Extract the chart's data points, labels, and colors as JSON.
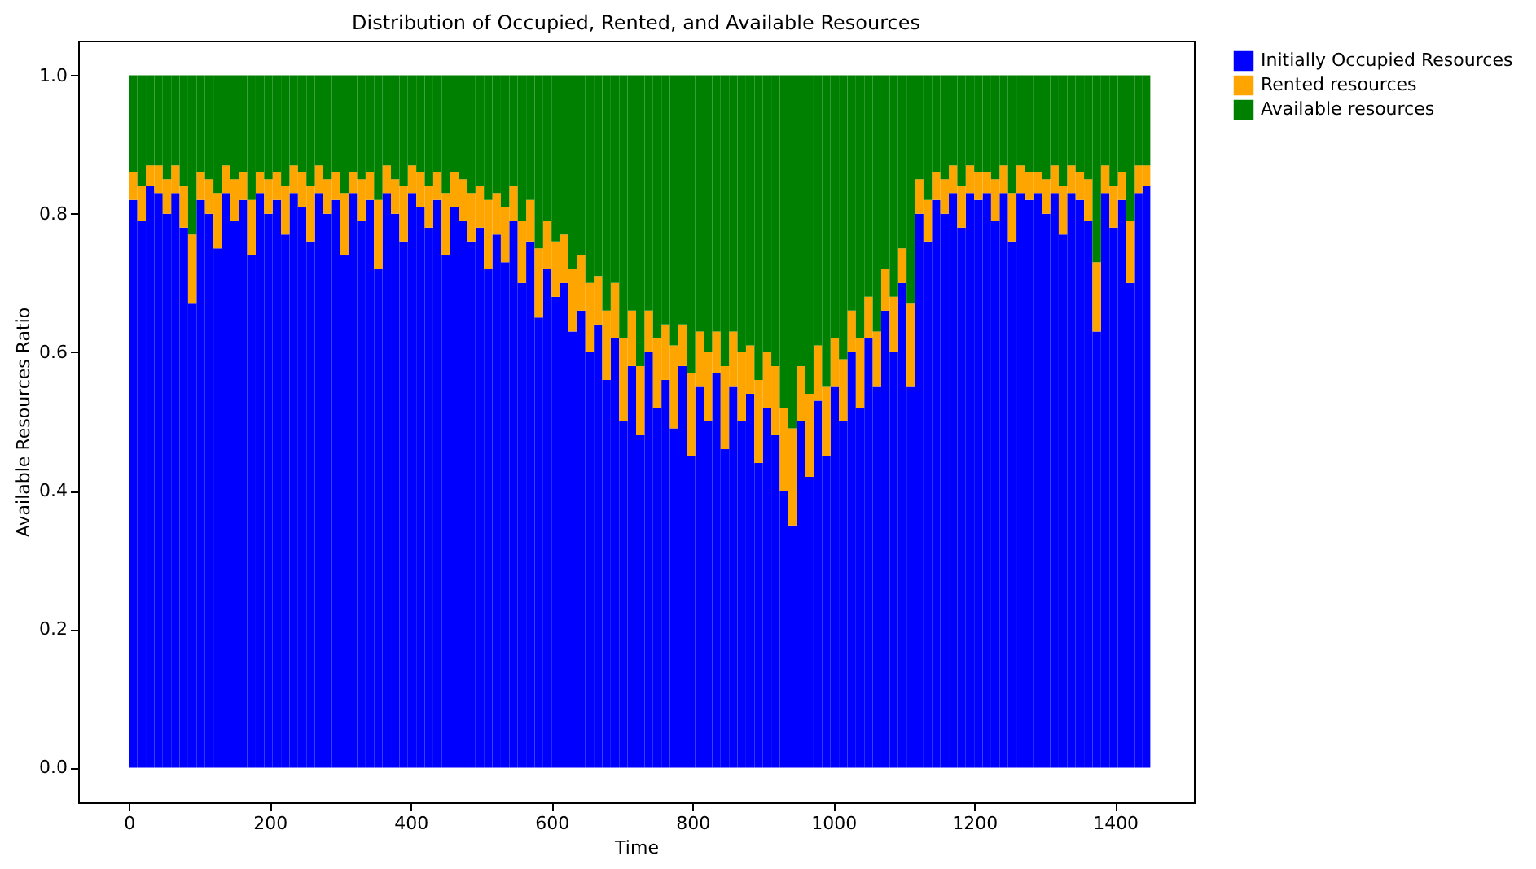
{
  "chart_data": {
    "type": "bar",
    "stacked": true,
    "title": "Distribution of Occupied, Rented, and Available Resources",
    "xlabel": "Time",
    "ylabel": "Available Resources Ratio",
    "x": [
      0,
      12,
      24,
      36,
      48,
      60,
      72,
      84,
      96,
      108,
      120,
      132,
      144,
      156,
      168,
      180,
      192,
      204,
      216,
      228,
      240,
      252,
      264,
      276,
      288,
      300,
      312,
      324,
      336,
      348,
      360,
      372,
      384,
      396,
      408,
      420,
      432,
      444,
      456,
      468,
      480,
      492,
      504,
      516,
      528,
      540,
      552,
      564,
      576,
      588,
      600,
      612,
      624,
      636,
      648,
      660,
      672,
      684,
      696,
      708,
      720,
      732,
      744,
      756,
      768,
      780,
      792,
      804,
      816,
      828,
      840,
      852,
      864,
      876,
      888,
      900,
      912,
      924,
      936,
      948,
      960,
      972,
      984,
      996,
      1008,
      1020,
      1032,
      1044,
      1056,
      1068,
      1080,
      1092,
      1104,
      1116,
      1128,
      1140,
      1152,
      1164,
      1176,
      1188,
      1200,
      1212,
      1224,
      1236,
      1248,
      1260,
      1272,
      1284,
      1296,
      1308,
      1320,
      1332,
      1344,
      1356,
      1368,
      1380,
      1392,
      1404,
      1416,
      1428,
      1439
    ],
    "series": [
      {
        "name": "Initially Occupied Resources",
        "color": "#0000ff",
        "values": [
          0.82,
          0.79,
          0.84,
          0.83,
          0.8,
          0.83,
          0.78,
          0.67,
          0.82,
          0.8,
          0.75,
          0.83,
          0.79,
          0.82,
          0.74,
          0.83,
          0.8,
          0.82,
          0.77,
          0.83,
          0.81,
          0.76,
          0.83,
          0.8,
          0.82,
          0.74,
          0.83,
          0.79,
          0.82,
          0.72,
          0.83,
          0.8,
          0.76,
          0.83,
          0.81,
          0.78,
          0.82,
          0.74,
          0.81,
          0.79,
          0.76,
          0.78,
          0.72,
          0.77,
          0.73,
          0.79,
          0.7,
          0.76,
          0.65,
          0.72,
          0.68,
          0.7,
          0.63,
          0.66,
          0.6,
          0.64,
          0.56,
          0.62,
          0.5,
          0.58,
          0.48,
          0.6,
          0.52,
          0.56,
          0.49,
          0.58,
          0.45,
          0.55,
          0.5,
          0.57,
          0.46,
          0.55,
          0.5,
          0.54,
          0.44,
          0.52,
          0.48,
          0.4,
          0.35,
          0.5,
          0.42,
          0.53,
          0.45,
          0.55,
          0.5,
          0.6,
          0.52,
          0.62,
          0.55,
          0.66,
          0.6,
          0.7,
          0.55,
          0.8,
          0.76,
          0.82,
          0.8,
          0.83,
          0.78,
          0.83,
          0.82,
          0.83,
          0.79,
          0.83,
          0.76,
          0.83,
          0.82,
          0.83,
          0.8,
          0.83,
          0.77,
          0.83,
          0.82,
          0.79,
          0.63,
          0.83,
          0.78,
          0.82,
          0.7,
          0.83,
          0.84
        ]
      },
      {
        "name": "Rented resources",
        "color": "#ffa500",
        "values": [
          0.04,
          0.05,
          0.03,
          0.04,
          0.05,
          0.04,
          0.06,
          0.1,
          0.04,
          0.05,
          0.08,
          0.04,
          0.06,
          0.04,
          0.08,
          0.03,
          0.05,
          0.04,
          0.07,
          0.04,
          0.05,
          0.08,
          0.04,
          0.05,
          0.04,
          0.09,
          0.03,
          0.06,
          0.04,
          0.1,
          0.04,
          0.05,
          0.08,
          0.04,
          0.05,
          0.06,
          0.04,
          0.09,
          0.05,
          0.06,
          0.07,
          0.06,
          0.1,
          0.06,
          0.08,
          0.05,
          0.09,
          0.06,
          0.1,
          0.07,
          0.08,
          0.07,
          0.09,
          0.08,
          0.1,
          0.07,
          0.1,
          0.08,
          0.12,
          0.08,
          0.1,
          0.06,
          0.1,
          0.08,
          0.12,
          0.06,
          0.12,
          0.08,
          0.1,
          0.06,
          0.12,
          0.08,
          0.1,
          0.07,
          0.12,
          0.08,
          0.1,
          0.12,
          0.14,
          0.08,
          0.12,
          0.08,
          0.1,
          0.07,
          0.09,
          0.06,
          0.1,
          0.06,
          0.08,
          0.06,
          0.08,
          0.05,
          0.12,
          0.05,
          0.06,
          0.04,
          0.05,
          0.04,
          0.06,
          0.04,
          0.04,
          0.03,
          0.06,
          0.04,
          0.07,
          0.04,
          0.04,
          0.03,
          0.05,
          0.04,
          0.07,
          0.04,
          0.04,
          0.06,
          0.1,
          0.04,
          0.06,
          0.04,
          0.09,
          0.04,
          0.03
        ]
      },
      {
        "name": "Available resources",
        "color": "#008000",
        "values": [
          0.14,
          0.16,
          0.13,
          0.13,
          0.15,
          0.13,
          0.16,
          0.23,
          0.14,
          0.15,
          0.17,
          0.13,
          0.15,
          0.14,
          0.18,
          0.14,
          0.15,
          0.14,
          0.16,
          0.13,
          0.14,
          0.16,
          0.13,
          0.15,
          0.14,
          0.17,
          0.14,
          0.15,
          0.14,
          0.18,
          0.13,
          0.15,
          0.16,
          0.13,
          0.14,
          0.16,
          0.14,
          0.17,
          0.14,
          0.15,
          0.17,
          0.16,
          0.18,
          0.17,
          0.19,
          0.16,
          0.21,
          0.18,
          0.25,
          0.21,
          0.24,
          0.23,
          0.28,
          0.26,
          0.3,
          0.29,
          0.34,
          0.3,
          0.38,
          0.34,
          0.42,
          0.34,
          0.38,
          0.36,
          0.39,
          0.36,
          0.43,
          0.37,
          0.4,
          0.37,
          0.42,
          0.37,
          0.4,
          0.39,
          0.44,
          0.4,
          0.42,
          0.48,
          0.51,
          0.42,
          0.46,
          0.39,
          0.45,
          0.38,
          0.41,
          0.34,
          0.38,
          0.32,
          0.37,
          0.28,
          0.32,
          0.25,
          0.33,
          0.15,
          0.18,
          0.14,
          0.15,
          0.13,
          0.16,
          0.13,
          0.14,
          0.14,
          0.15,
          0.13,
          0.17,
          0.13,
          0.14,
          0.14,
          0.15,
          0.13,
          0.16,
          0.13,
          0.14,
          0.15,
          0.27,
          0.13,
          0.16,
          0.14,
          0.21,
          0.13,
          0.13
        ]
      }
    ],
    "xlim": [
      -72,
      1512
    ],
    "xticks": [
      0,
      200,
      400,
      600,
      800,
      1000,
      1200,
      1400
    ],
    "ylim": [
      -0.05,
      1.05
    ],
    "yticks": [
      {
        "value": 0,
        "label": "0.0"
      },
      0.2,
      0.4,
      0.6,
      0.8,
      {
        "value": 1,
        "label": "1.0"
      }
    ],
    "legend": "top right"
  }
}
